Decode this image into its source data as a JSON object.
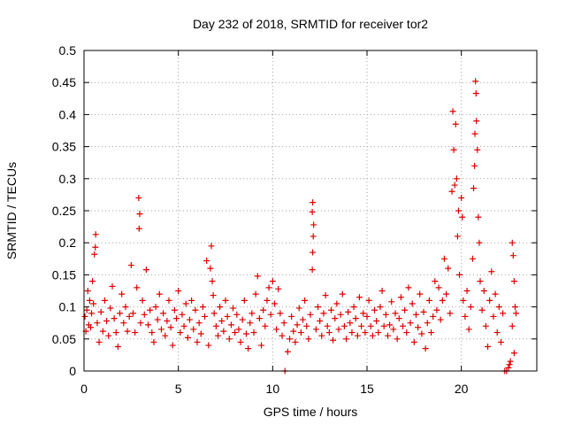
{
  "chart_data": {
    "type": "scatter",
    "title": "Day 232 of 2018, SRMTID for receiver tor2",
    "xlabel": "GPS time / hours",
    "ylabel": "SRMTID / TECUs",
    "xlim": [
      0,
      24
    ],
    "ylim": [
      0,
      0.5
    ],
    "xticks": [
      0,
      5,
      10,
      15,
      20
    ],
    "xtick_labels": [
      "0",
      "5",
      "10",
      "15",
      "20"
    ],
    "yticks": [
      0,
      0.05,
      0.1,
      0.15,
      0.2,
      0.25,
      0.3,
      0.35,
      0.4,
      0.45,
      0.5
    ],
    "ytick_labels": [
      "0",
      "0.05",
      "0.1",
      "0.15",
      "0.2",
      "0.25",
      "0.3",
      "0.35",
      "0.4",
      "0.45",
      "0.5"
    ],
    "grid": true,
    "marker": "+",
    "color": "#dd0000",
    "series": [
      {
        "name": "tor2",
        "points": [
          [
            0.05,
            0.085
          ],
          [
            0.1,
            0.062
          ],
          [
            0.15,
            0.095
          ],
          [
            0.2,
            0.125
          ],
          [
            0.25,
            0.072
          ],
          [
            0.3,
            0.11
          ],
          [
            0.35,
            0.068
          ],
          [
            0.4,
            0.09
          ],
          [
            0.45,
            0.14
          ],
          [
            0.5,
            0.105
          ],
          [
            0.55,
            0.182
          ],
          [
            0.6,
            0.193
          ],
          [
            0.62,
            0.213
          ],
          [
            0.7,
            0.075
          ],
          [
            0.8,
            0.045
          ],
          [
            0.9,
            0.092
          ],
          [
            1.0,
            0.062
          ],
          [
            1.1,
            0.11
          ],
          [
            1.2,
            0.078
          ],
          [
            1.3,
            0.055
          ],
          [
            1.4,
            0.098
          ],
          [
            1.5,
            0.132
          ],
          [
            1.6,
            0.082
          ],
          [
            1.7,
            0.06
          ],
          [
            1.8,
            0.038
          ],
          [
            1.9,
            0.09
          ],
          [
            2.0,
            0.12
          ],
          [
            2.1,
            0.075
          ],
          [
            2.2,
            0.1
          ],
          [
            2.3,
            0.062
          ],
          [
            2.4,
            0.085
          ],
          [
            2.5,
            0.165
          ],
          [
            2.6,
            0.09
          ],
          [
            2.7,
            0.06
          ],
          [
            2.8,
            0.13
          ],
          [
            2.9,
            0.27
          ],
          [
            2.95,
            0.245
          ],
          [
            2.92,
            0.222
          ],
          [
            3.0,
            0.075
          ],
          [
            3.1,
            0.11
          ],
          [
            3.2,
            0.088
          ],
          [
            3.3,
            0.158
          ],
          [
            3.4,
            0.072
          ],
          [
            3.5,
            0.095
          ],
          [
            3.6,
            0.06
          ],
          [
            3.7,
            0.045
          ],
          [
            3.8,
            0.1
          ],
          [
            3.9,
            0.08
          ],
          [
            4.0,
            0.12
          ],
          [
            4.1,
            0.065
          ],
          [
            4.2,
            0.09
          ],
          [
            4.3,
            0.055
          ],
          [
            4.4,
            0.078
          ],
          [
            4.5,
            0.11
          ],
          [
            4.6,
            0.068
          ],
          [
            4.7,
            0.04
          ],
          [
            4.8,
            0.095
          ],
          [
            4.9,
            0.082
          ],
          [
            5.0,
            0.125
          ],
          [
            5.1,
            0.06
          ],
          [
            5.2,
            0.088
          ],
          [
            5.3,
            0.07
          ],
          [
            5.4,
            0.105
          ],
          [
            5.5,
            0.052
          ],
          [
            5.6,
            0.08
          ],
          [
            5.7,
            0.11
          ],
          [
            5.8,
            0.065
          ],
          [
            5.9,
            0.095
          ],
          [
            6.0,
            0.045
          ],
          [
            6.1,
            0.075
          ],
          [
            6.2,
            0.058
          ],
          [
            6.3,
            0.1
          ],
          [
            6.4,
            0.085
          ],
          [
            6.5,
            0.172
          ],
          [
            6.6,
            0.04
          ],
          [
            6.7,
            0.16
          ],
          [
            6.75,
            0.195
          ],
          [
            6.8,
            0.14
          ],
          [
            6.85,
            0.118
          ],
          [
            6.9,
            0.09
          ],
          [
            7.0,
            0.07
          ],
          [
            7.1,
            0.055
          ],
          [
            7.2,
            0.1
          ],
          [
            7.3,
            0.078
          ],
          [
            7.4,
            0.062
          ],
          [
            7.5,
            0.11
          ],
          [
            7.6,
            0.085
          ],
          [
            7.7,
            0.05
          ],
          [
            7.8,
            0.072
          ],
          [
            7.9,
            0.098
          ],
          [
            8.0,
            0.06
          ],
          [
            8.1,
            0.088
          ],
          [
            8.2,
            0.065
          ],
          [
            8.3,
            0.045
          ],
          [
            8.4,
            0.08
          ],
          [
            8.5,
            0.11
          ],
          [
            8.6,
            0.058
          ],
          [
            8.7,
            0.035
          ],
          [
            8.8,
            0.075
          ],
          [
            8.9,
            0.09
          ],
          [
            9.0,
            0.06
          ],
          [
            9.1,
            0.12
          ],
          [
            9.2,
            0.148
          ],
          [
            9.3,
            0.082
          ],
          [
            9.4,
            0.04
          ],
          [
            9.5,
            0.095
          ],
          [
            9.6,
            0.07
          ],
          [
            9.7,
            0.11
          ],
          [
            9.8,
            0.13
          ],
          [
            9.9,
            0.088
          ],
          [
            10.0,
            0.14
          ],
          [
            10.1,
            0.105
          ],
          [
            10.2,
            0.065
          ],
          [
            10.3,
            0.128
          ],
          [
            10.4,
            0.09
          ],
          [
            10.5,
            0.055
          ],
          [
            10.6,
            0.075
          ],
          [
            10.65,
            0.0
          ],
          [
            10.8,
            0.03
          ],
          [
            10.9,
            0.05
          ],
          [
            11.0,
            0.085
          ],
          [
            11.1,
            0.062
          ],
          [
            11.2,
            0.045
          ],
          [
            11.3,
            0.072
          ],
          [
            11.4,
            0.098
          ],
          [
            11.5,
            0.06
          ],
          [
            11.6,
            0.08
          ],
          [
            11.7,
            0.11
          ],
          [
            11.8,
            0.07
          ],
          [
            11.9,
            0.05
          ],
          [
            12.0,
            0.088
          ],
          [
            12.1,
            0.158
          ],
          [
            12.12,
            0.185
          ],
          [
            12.15,
            0.21
          ],
          [
            12.17,
            0.228
          ],
          [
            12.1,
            0.248
          ],
          [
            12.12,
            0.263
          ],
          [
            12.3,
            0.065
          ],
          [
            12.4,
            0.1
          ],
          [
            12.5,
            0.078
          ],
          [
            12.6,
            0.055
          ],
          [
            12.7,
            0.09
          ],
          [
            12.8,
            0.118
          ],
          [
            12.9,
            0.07
          ],
          [
            13.0,
            0.06
          ],
          [
            13.1,
            0.095
          ],
          [
            13.2,
            0.048
          ],
          [
            13.3,
            0.082
          ],
          [
            13.4,
            0.105
          ],
          [
            13.5,
            0.065
          ],
          [
            13.6,
            0.088
          ],
          [
            13.7,
            0.12
          ],
          [
            13.8,
            0.07
          ],
          [
            13.9,
            0.05
          ],
          [
            14.0,
            0.092
          ],
          [
            14.1,
            0.075
          ],
          [
            14.2,
            0.06
          ],
          [
            14.3,
            0.1
          ],
          [
            14.4,
            0.082
          ],
          [
            14.5,
            0.055
          ],
          [
            14.6,
            0.115
          ],
          [
            14.7,
            0.07
          ],
          [
            14.8,
            0.09
          ],
          [
            14.9,
            0.06
          ],
          [
            15.0,
            0.085
          ],
          [
            15.1,
            0.11
          ],
          [
            15.2,
            0.07
          ],
          [
            15.3,
            0.055
          ],
          [
            15.4,
            0.095
          ],
          [
            15.5,
            0.078
          ],
          [
            15.6,
            0.06
          ],
          [
            15.7,
            0.1
          ],
          [
            15.8,
            0.125
          ],
          [
            15.9,
            0.07
          ],
          [
            16.0,
            0.088
          ],
          [
            16.1,
            0.055
          ],
          [
            16.2,
            0.072
          ],
          [
            16.3,
            0.108
          ],
          [
            16.4,
            0.065
          ],
          [
            16.5,
            0.09
          ],
          [
            16.6,
            0.05
          ],
          [
            16.7,
            0.082
          ],
          [
            16.8,
            0.115
          ],
          [
            16.9,
            0.07
          ],
          [
            17.0,
            0.095
          ],
          [
            17.1,
            0.06
          ],
          [
            17.2,
            0.13
          ],
          [
            17.3,
            0.075
          ],
          [
            17.4,
            0.105
          ],
          [
            17.5,
            0.045
          ],
          [
            17.6,
            0.088
          ],
          [
            17.7,
            0.068
          ],
          [
            17.8,
            0.12
          ],
          [
            17.9,
            0.058
          ],
          [
            18.0,
            0.092
          ],
          [
            18.1,
            0.035
          ],
          [
            18.2,
            0.075
          ],
          [
            18.3,
            0.11
          ],
          [
            18.4,
            0.06
          ],
          [
            18.5,
            0.085
          ],
          [
            18.6,
            0.14
          ],
          [
            18.7,
            0.095
          ],
          [
            18.8,
            0.13
          ],
          [
            18.9,
            0.08
          ],
          [
            19.0,
            0.11
          ],
          [
            19.1,
            0.175
          ],
          [
            19.2,
            0.12
          ],
          [
            19.3,
            0.16
          ],
          [
            19.4,
            0.09
          ],
          [
            19.5,
            0.28
          ],
          [
            19.55,
            0.405
          ],
          [
            19.6,
            0.345
          ],
          [
            19.65,
            0.29
          ],
          [
            19.7,
            0.385
          ],
          [
            19.75,
            0.3
          ],
          [
            19.8,
            0.21
          ],
          [
            19.85,
            0.25
          ],
          [
            19.9,
            0.15
          ],
          [
            20.0,
            0.27
          ],
          [
            20.05,
            0.24
          ],
          [
            20.1,
            0.11
          ],
          [
            20.2,
            0.085
          ],
          [
            20.3,
            0.125
          ],
          [
            20.4,
            0.065
          ],
          [
            20.5,
            0.1
          ],
          [
            20.6,
            0.175
          ],
          [
            20.65,
            0.285
          ],
          [
            20.7,
            0.32
          ],
          [
            20.72,
            0.37
          ],
          [
            20.75,
            0.452
          ],
          [
            20.78,
            0.433
          ],
          [
            20.8,
            0.39
          ],
          [
            20.85,
            0.345
          ],
          [
            20.9,
            0.24
          ],
          [
            20.95,
            0.2
          ],
          [
            21.0,
            0.14
          ],
          [
            21.1,
            0.095
          ],
          [
            21.2,
            0.125
          ],
          [
            21.3,
            0.07
          ],
          [
            21.4,
            0.038
          ],
          [
            21.5,
            0.11
          ],
          [
            21.6,
            0.155
          ],
          [
            21.7,
            0.085
          ],
          [
            21.8,
            0.12
          ],
          [
            21.9,
            0.06
          ],
          [
            22.0,
            0.1
          ],
          [
            22.1,
            0.045
          ],
          [
            22.2,
            0.09
          ],
          [
            22.3,
            0.0
          ],
          [
            22.4,
            0.0
          ],
          [
            22.5,
            0.005
          ],
          [
            22.55,
            0.01
          ],
          [
            22.6,
            0.015
          ],
          [
            22.7,
            0.2
          ],
          [
            22.75,
            0.18
          ],
          [
            22.8,
            0.14
          ],
          [
            22.85,
            0.1
          ],
          [
            22.7,
            0.07
          ],
          [
            22.8,
            0.028
          ],
          [
            22.9,
            0.09
          ]
        ]
      }
    ]
  }
}
